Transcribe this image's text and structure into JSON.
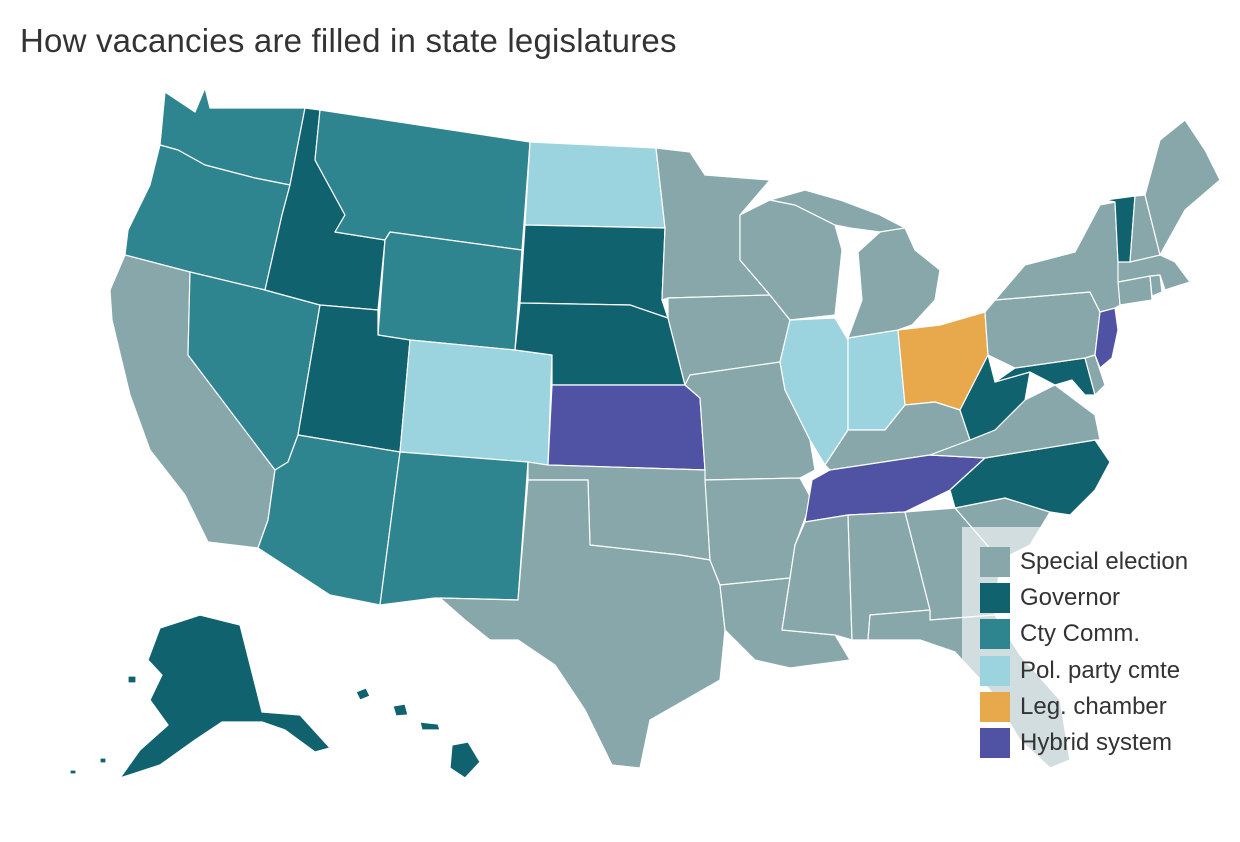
{
  "title": "How vacancies are filled in state legislatures",
  "colors": {
    "special_election": "#87a7ab",
    "governor": "#10626e",
    "cty_comm": "#2e8590",
    "pol_party_cmte": "#9bd3de",
    "leg_chamber": "#e7a94c",
    "hybrid_system": "#5053a4"
  },
  "legend": {
    "items": [
      {
        "key": "special_election",
        "label": "Special election"
      },
      {
        "key": "governor",
        "label": "Governor"
      },
      {
        "key": "cty_comm",
        "label": "Cty Comm."
      },
      {
        "key": "pol_party_cmte",
        "label": "Pol. party cmte"
      },
      {
        "key": "leg_chamber",
        "label": "Leg. chamber"
      },
      {
        "key": "hybrid_system",
        "label": "Hybrid system"
      }
    ]
  },
  "states": {
    "WA": "cty_comm",
    "OR": "cty_comm",
    "NV": "cty_comm",
    "AZ": "cty_comm",
    "MT": "cty_comm",
    "WY": "cty_comm",
    "NM": "cty_comm",
    "ID": "governor",
    "UT": "governor",
    "SD": "governor",
    "NE": "governor",
    "AK": "governor",
    "HI": "governor",
    "WV": "governor",
    "MD": "governor",
    "NC": "governor",
    "VT": "governor",
    "ND": "pol_party_cmte",
    "CO": "pol_party_cmte",
    "IL": "pol_party_cmte",
    "IN": "pol_party_cmte",
    "OH": "leg_chamber",
    "KS": "hybrid_system",
    "TN": "hybrid_system",
    "NJ": "hybrid_system",
    "CA": "special_election",
    "TX": "special_election",
    "OK": "special_election",
    "MN": "special_election",
    "IA": "special_election",
    "MO": "special_election",
    "AR": "special_election",
    "LA": "special_election",
    "WI": "special_election",
    "MI": "special_election",
    "KY": "special_election",
    "MS": "special_election",
    "AL": "special_election",
    "GA": "special_election",
    "FL": "special_election",
    "SC": "special_election",
    "VA": "special_election",
    "PA": "special_election",
    "NY": "special_election",
    "DE": "special_election",
    "CT": "special_election",
    "RI": "special_election",
    "MA": "special_election",
    "NH": "special_election",
    "ME": "special_election"
  }
}
